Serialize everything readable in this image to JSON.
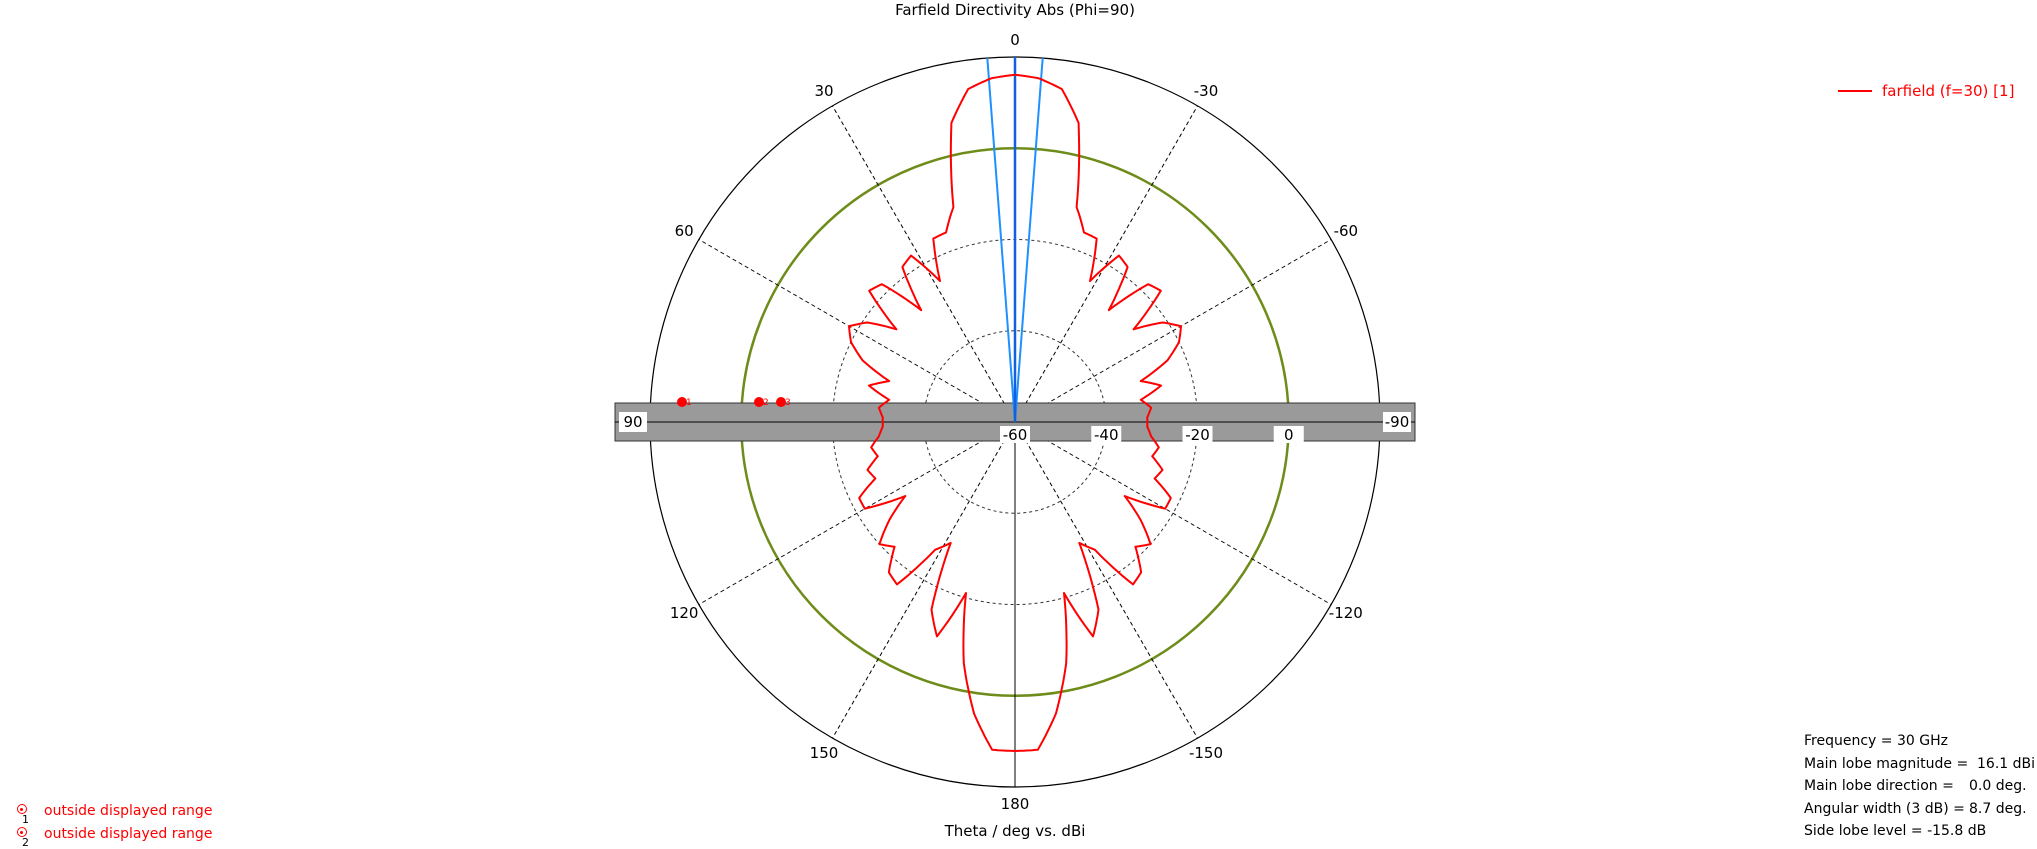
{
  "chart_data": {
    "type": "polar",
    "title": "Farfield Directivity Abs (Phi=90)",
    "xlabel": "Theta / deg vs. dBi",
    "angle_ticks": [
      {
        "angle": 0,
        "label": "0"
      },
      {
        "angle": 30,
        "label": "30"
      },
      {
        "angle": 60,
        "label": "60"
      },
      {
        "angle": 90,
        "label": "90"
      },
      {
        "angle": 120,
        "label": "120"
      },
      {
        "angle": 150,
        "label": "150"
      },
      {
        "angle": 180,
        "label": "180"
      },
      {
        "angle": -150,
        "label": "-150"
      },
      {
        "angle": -120,
        "label": "-120"
      },
      {
        "angle": -90,
        "label": "-90"
      },
      {
        "angle": -60,
        "label": "-60"
      },
      {
        "angle": -30,
        "label": "-30"
      }
    ],
    "radial_ticks": [
      {
        "value": -60,
        "label": "-60"
      },
      {
        "value": -40,
        "label": "-40"
      },
      {
        "value": -20,
        "label": "-20"
      },
      {
        "value": 0,
        "label": "0"
      }
    ],
    "r_range": [
      -60,
      20
    ],
    "reference_level_dBi": 0,
    "series": [
      {
        "name": "farfield (f=30) [1]",
        "color": "#ff0000",
        "theta_deg": [
          0,
          4,
          8,
          12,
          16,
          20,
          24,
          28,
          32,
          36,
          40,
          44,
          48,
          52,
          56,
          60,
          64,
          68,
          72,
          76,
          80,
          84,
          88,
          92,
          96,
          100,
          104,
          108,
          112,
          116,
          120,
          124,
          128,
          132,
          136,
          140,
          144,
          148,
          152,
          156,
          160,
          164,
          168,
          172,
          176,
          180
        ],
        "directivity_dBi": [
          16.1,
          15.5,
          13.7,
          7,
          -11,
          -15.8,
          -16,
          -25,
          -17,
          -18,
          -28,
          -18,
          -17,
          -27,
          -21,
          -18,
          -20,
          -24,
          -31,
          -27,
          -32,
          -30,
          -31,
          -31,
          -30,
          -28,
          -29,
          -26,
          -27,
          -22,
          -22,
          -31,
          -25,
          -20,
          -22,
          -17,
          -16,
          -27,
          -30,
          -15,
          -10,
          -21,
          -6,
          4.5,
          12,
          12.1
        ]
      }
    ],
    "beamwidth_lines_deg": [
      -4.35,
      4.35
    ],
    "main_lobe_line_deg": 0,
    "markers": [
      {
        "id": "1",
        "label": "1"
      },
      {
        "id": "2",
        "label": "2"
      },
      {
        "id": "3",
        "label": "3"
      }
    ],
    "colors": {
      "reference_circle": "#6e8c1a",
      "beam_lines": "#1e90ff",
      "band": "#9a9a9a"
    }
  },
  "legend": {
    "label": "farfield (f=30) [1]"
  },
  "info": [
    {
      "key": "Frequency = ",
      "value": "30 GHz"
    },
    {
      "key": "Main lobe magnitude = ",
      "value": "16.1 dBi"
    },
    {
      "key": "Main lobe direction = ",
      "value": "0.0 deg."
    },
    {
      "key": "Angular width (3 dB) = ",
      "value": "8.7 deg."
    },
    {
      "key": "Side lobe level = ",
      "value": "-15.8 dB"
    }
  ],
  "notes": [
    {
      "num": "1",
      "text": "outside displayed range"
    },
    {
      "num": "2",
      "text": "outside displayed range"
    }
  ]
}
